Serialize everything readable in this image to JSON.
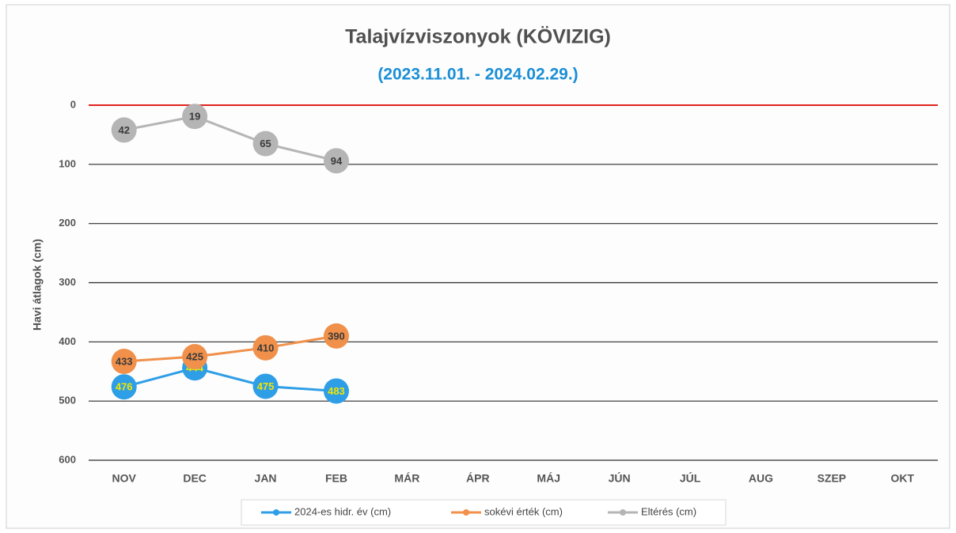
{
  "chart_data": {
    "type": "line",
    "title": "Talajvízviszonyok (KÖVIZIG)",
    "subtitle": "(2023.11.01. - 2024.02.29.)",
    "y_label": "Havi átlagok (cm)",
    "categories": [
      "NOV",
      "DEC",
      "JAN",
      "FEB",
      "MÁR",
      "ÁPR",
      "MÁJ",
      "JÚN",
      "JÚL",
      "AUG",
      "SZEP",
      "OKT"
    ],
    "series": [
      {
        "name": "2024-es hidr. év (cm)",
        "color": "#2e9ee6",
        "label_color": "#f2e600",
        "values": [
          476,
          444,
          475,
          483,
          null,
          null,
          null,
          null,
          null,
          null,
          null,
          null
        ]
      },
      {
        "name": "sokévi érték (cm)",
        "color": "#f0904a",
        "label_color": "#3a3a3a",
        "values": [
          433,
          425,
          410,
          390,
          null,
          null,
          null,
          null,
          null,
          null,
          null,
          null
        ]
      },
      {
        "name": "Eltérés (cm)",
        "color": "#b5b5b5",
        "label_color": "#3a3a3a",
        "values": [
          42,
          19,
          65,
          94,
          null,
          null,
          null,
          null,
          null,
          null,
          null,
          null
        ]
      }
    ],
    "ylim": [
      0,
      600
    ],
    "yticks": [
      0,
      100,
      200,
      300,
      400,
      500,
      600
    ],
    "y_reversed": true,
    "grid": true,
    "zero_line_color": "#e0231e",
    "legend": "bottom"
  }
}
